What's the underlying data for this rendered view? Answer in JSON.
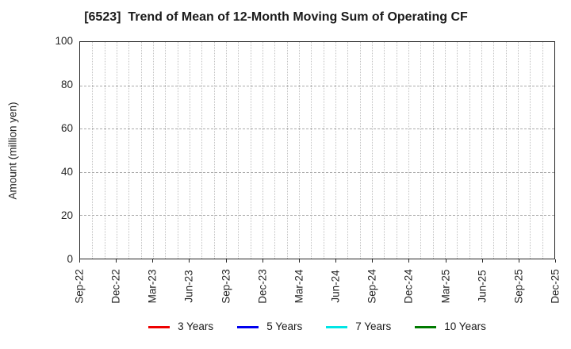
{
  "chart_data": {
    "type": "line",
    "title": "[6523]  Trend of Mean of 12-Month Moving Sum of Operating CF",
    "ylabel": "Amount (million yen)",
    "xlabel": "",
    "ylim": [
      0,
      100
    ],
    "yticks": [
      0,
      20,
      40,
      60,
      80,
      100
    ],
    "x_tick_labels": [
      "Sep-22",
      "Dec-22",
      "Mar-23",
      "Jun-23",
      "Sep-23",
      "Dec-23",
      "Mar-24",
      "Jun-24",
      "Sep-24",
      "Dec-24",
      "Mar-25",
      "Jun-25",
      "Sep-25",
      "Dec-25"
    ],
    "months_count": 39,
    "grid": {
      "vertical": "monthly dotted gray lines",
      "horizontal": "dashed gray lines at labeled y ticks",
      "enabled": true
    },
    "legend_position": "bottom-center",
    "series": [
      {
        "name": "3 Years",
        "color": "#ee0000",
        "values": []
      },
      {
        "name": "5 Years",
        "color": "#0000ee",
        "values": []
      },
      {
        "name": "7 Years",
        "color": "#00e5e5",
        "values": []
      },
      {
        "name": "10 Years",
        "color": "#007a00",
        "values": []
      }
    ],
    "plot_area_note": "no series lines are drawn in the plot area (empty chart)"
  }
}
